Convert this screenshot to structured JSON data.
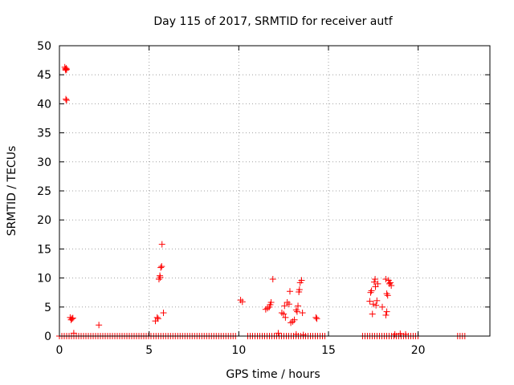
{
  "chart_data": {
    "type": "scatter",
    "title": "Day 115 of 2017, SRMTID for receiver autf",
    "xlabel": "GPS time / hours",
    "ylabel": "SRMTID / TECUs",
    "xlim": [
      0,
      24
    ],
    "ylim": [
      0,
      50
    ],
    "grid": true,
    "marker": "+",
    "color": "#ff0000",
    "xticks": [
      0,
      5,
      10,
      15,
      20
    ],
    "yticks": [
      0,
      5,
      10,
      15,
      20,
      25,
      30,
      35,
      40,
      45,
      50
    ],
    "xtick_labels": [
      "0",
      "5",
      "10",
      "15",
      "20"
    ],
    "ytick_labels": [
      "0",
      "5",
      "10",
      "15",
      "20",
      "25",
      "30",
      "35",
      "40",
      "45",
      "50"
    ],
    "baseline_segments": [
      [
        0.0,
        5.2
      ],
      [
        5.25,
        9.95
      ],
      [
        10.5,
        14.8
      ],
      [
        16.9,
        20.05
      ],
      [
        22.2,
        22.7
      ]
    ],
    "points": [
      [
        0.3,
        46.3
      ],
      [
        0.33,
        46.0
      ],
      [
        0.35,
        45.8
      ],
      [
        0.38,
        46.1
      ],
      [
        0.4,
        45.9
      ],
      [
        0.36,
        40.8
      ],
      [
        0.4,
        40.6
      ],
      [
        0.6,
        3.2
      ],
      [
        0.65,
        2.8
      ],
      [
        0.7,
        3.0
      ],
      [
        0.75,
        3.1
      ],
      [
        0.8,
        0.5
      ],
      [
        2.2,
        1.9
      ],
      [
        5.35,
        2.6
      ],
      [
        5.45,
        3.2
      ],
      [
        5.5,
        3.0
      ],
      [
        5.55,
        9.8
      ],
      [
        5.6,
        10.4
      ],
      [
        5.62,
        10.1
      ],
      [
        5.65,
        11.8
      ],
      [
        5.7,
        12.0
      ],
      [
        5.72,
        15.8
      ],
      [
        5.8,
        4.0
      ],
      [
        10.1,
        6.2
      ],
      [
        10.2,
        5.9
      ],
      [
        11.5,
        4.6
      ],
      [
        11.6,
        4.8
      ],
      [
        11.7,
        5.0
      ],
      [
        11.75,
        5.4
      ],
      [
        11.8,
        5.8
      ],
      [
        11.9,
        9.8
      ],
      [
        12.2,
        0.5
      ],
      [
        12.4,
        4.0
      ],
      [
        12.5,
        3.8
      ],
      [
        12.55,
        5.2
      ],
      [
        12.6,
        3.2
      ],
      [
        12.7,
        5.8
      ],
      [
        12.8,
        5.5
      ],
      [
        12.85,
        7.7
      ],
      [
        12.9,
        2.3
      ],
      [
        13.0,
        2.5
      ],
      [
        13.1,
        2.8
      ],
      [
        13.2,
        4.5
      ],
      [
        13.25,
        4.2
      ],
      [
        13.3,
        5.2
      ],
      [
        13.35,
        7.6
      ],
      [
        13.38,
        8.0
      ],
      [
        13.42,
        9.2
      ],
      [
        13.5,
        9.6
      ],
      [
        13.55,
        4.0
      ],
      [
        13.2,
        0.3
      ],
      [
        13.6,
        0.2
      ],
      [
        14.3,
        3.2
      ],
      [
        14.35,
        3.0
      ],
      [
        17.3,
        6.0
      ],
      [
        17.35,
        7.5
      ],
      [
        17.4,
        7.8
      ],
      [
        17.45,
        3.8
      ],
      [
        17.5,
        5.5
      ],
      [
        17.55,
        9.3
      ],
      [
        17.6,
        9.8
      ],
      [
        17.62,
        8.5
      ],
      [
        17.65,
        5.3
      ],
      [
        17.7,
        6.1
      ],
      [
        17.75,
        9.0
      ],
      [
        18.0,
        5.0
      ],
      [
        18.2,
        9.8
      ],
      [
        18.25,
        7.3
      ],
      [
        18.3,
        7.0
      ],
      [
        18.35,
        9.6
      ],
      [
        18.4,
        9.0
      ],
      [
        18.45,
        9.2
      ],
      [
        18.5,
        8.7
      ],
      [
        18.2,
        3.6
      ],
      [
        18.25,
        4.2
      ],
      [
        18.7,
        0.3
      ],
      [
        19.0,
        0.4
      ],
      [
        19.3,
        0.3
      ]
    ]
  }
}
